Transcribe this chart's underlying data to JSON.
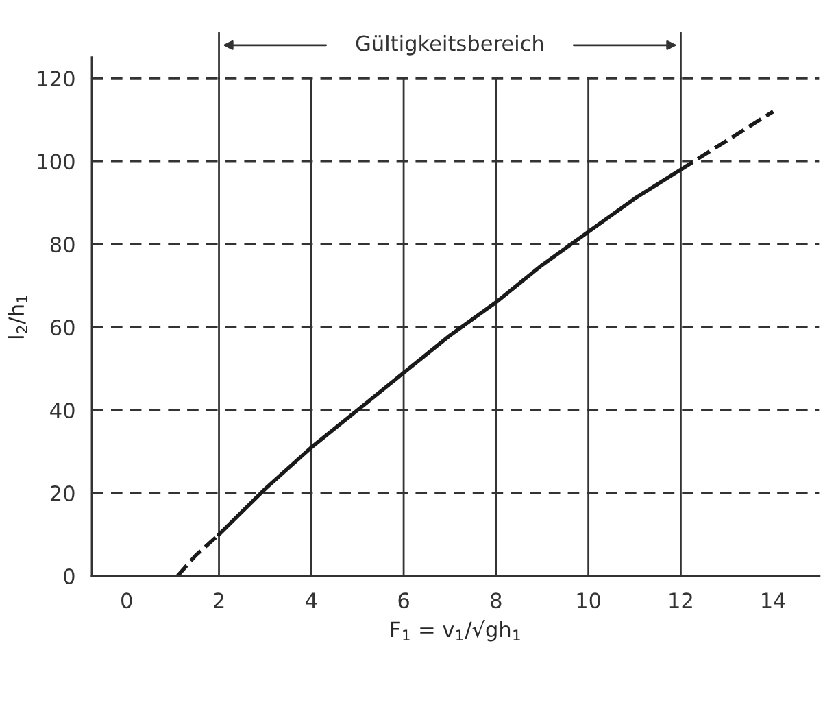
{
  "chart_data": {
    "type": "line",
    "xlabel": "F$_{1}$ = v$_{1}$/√gh$_{1}$",
    "ylabel": "l$_{2}$/h$_{1}$",
    "xlim": [
      -0.75,
      15
    ],
    "xticks": [
      0,
      2,
      4,
      6,
      8,
      10,
      12,
      14
    ],
    "ylim": [
      0,
      125
    ],
    "yticks": [
      0,
      20,
      40,
      60,
      80,
      100,
      120
    ],
    "grid": true,
    "marker": "none",
    "series": [
      {
        "color": "#1a1a1a",
        "line_style": "dashed",
        "x": [
          1.1,
          1.5,
          2
        ],
        "values": [
          0,
          5,
          10
        ]
      },
      {
        "color": "#1a1a1a",
        "line_style": "solid",
        "x": [
          2,
          3,
          4,
          5,
          6,
          7,
          8,
          9,
          10,
          11,
          12
        ],
        "values": [
          10,
          21,
          31,
          40,
          49,
          58,
          66,
          75,
          83,
          91,
          98
        ]
      },
      {
        "color": "#1a1a1a",
        "line_style": "dashed",
        "x": [
          12,
          13,
          14
        ],
        "values": [
          98,
          105,
          112
        ]
      }
    ],
    "annotations": [
      "Gültigkeitsbereich"
    ]
  }
}
